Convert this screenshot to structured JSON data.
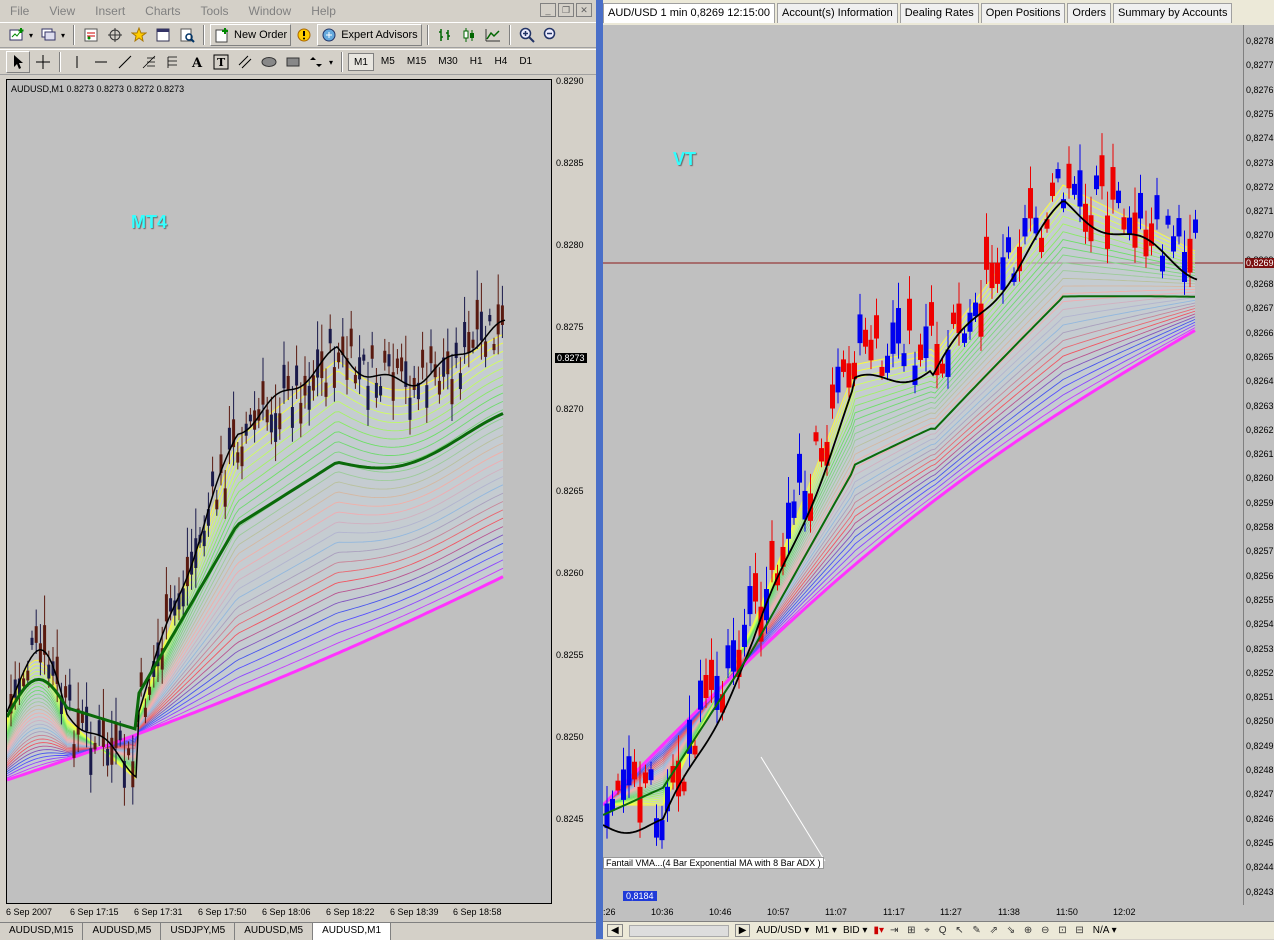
{
  "mt4": {
    "menu": [
      "File",
      "View",
      "Insert",
      "Charts",
      "Tools",
      "Window",
      "Help"
    ],
    "toolbar": {
      "new_order": "New Order",
      "expert_advisors": "Expert Advisors"
    },
    "timeframes": [
      "M1",
      "M5",
      "M15",
      "M30",
      "H1",
      "H4",
      "D1"
    ],
    "active_timeframe": "M1",
    "chart_header": "AUDUSD,M1  0.8273 0.8273 0.8272 0.8273",
    "watermark": "MT4",
    "watermark_color": "#33ffff",
    "price_labels": [
      "0.8290",
      "0.8285",
      "0.8280",
      "0.8275",
      "0.8270",
      "0.8265",
      "0.8260",
      "0.8255",
      "0.8250",
      "0.8245"
    ],
    "current_price": "0.8273",
    "time_labels": [
      "6 Sep 2007",
      "6 Sep 17:15",
      "6 Sep 17:31",
      "6 Sep 17:50",
      "6 Sep 18:06",
      "6 Sep 18:22",
      "6 Sep 18:39",
      "6 Sep 18:58"
    ],
    "bottom_tabs": [
      "AUDUSD,M15",
      "AUDUSD,M5",
      "USDJPY,M5",
      "AUDUSD,M5",
      "AUDUSD,M1"
    ],
    "active_bottom_tab": "AUDUSD,M1"
  },
  "vt": {
    "tabs": [
      "AUD/USD 1 min 0,8269 12:15:00",
      "Account(s) Information",
      "Dealing Rates",
      "Open Positions",
      "Orders",
      "Summary by Accounts"
    ],
    "watermark": "VT",
    "price_labels": [
      "0,8278",
      "0,8277",
      "0,8276",
      "0,8275",
      "0,8274",
      "0,8273",
      "0,8272",
      "0,8271",
      "0,8270",
      "0,8269",
      "0,8268",
      "0,8267",
      "0,8266",
      "0,8265",
      "0,8264",
      "0,8263",
      "0,8262",
      "0,8261",
      "0,8260",
      "0,8259",
      "0,8258",
      "0,8257",
      "0,8256",
      "0,8255",
      "0,8254",
      "0,8253",
      "0,8252",
      "0,8251",
      "0,8250",
      "0,8249",
      "0,8248",
      "0,8247",
      "0,8246",
      "0,8245",
      "0,8244",
      "0,8243"
    ],
    "current_price": "0,8269",
    "time_labels": [
      ":26",
      "10:36",
      "10:46",
      "10:57",
      "11:07",
      "11:17",
      "11:27",
      "11:38",
      "11:50",
      "12:02"
    ],
    "indicator_label": "Fantail VMA...(4 Bar Exponential MA with 8 Bar ADX )",
    "marker_label": "0,8184",
    "bottom": {
      "symbol": "AUD/USD",
      "timeframe": "M1",
      "price_type": "BID",
      "na": "N/A"
    }
  }
}
